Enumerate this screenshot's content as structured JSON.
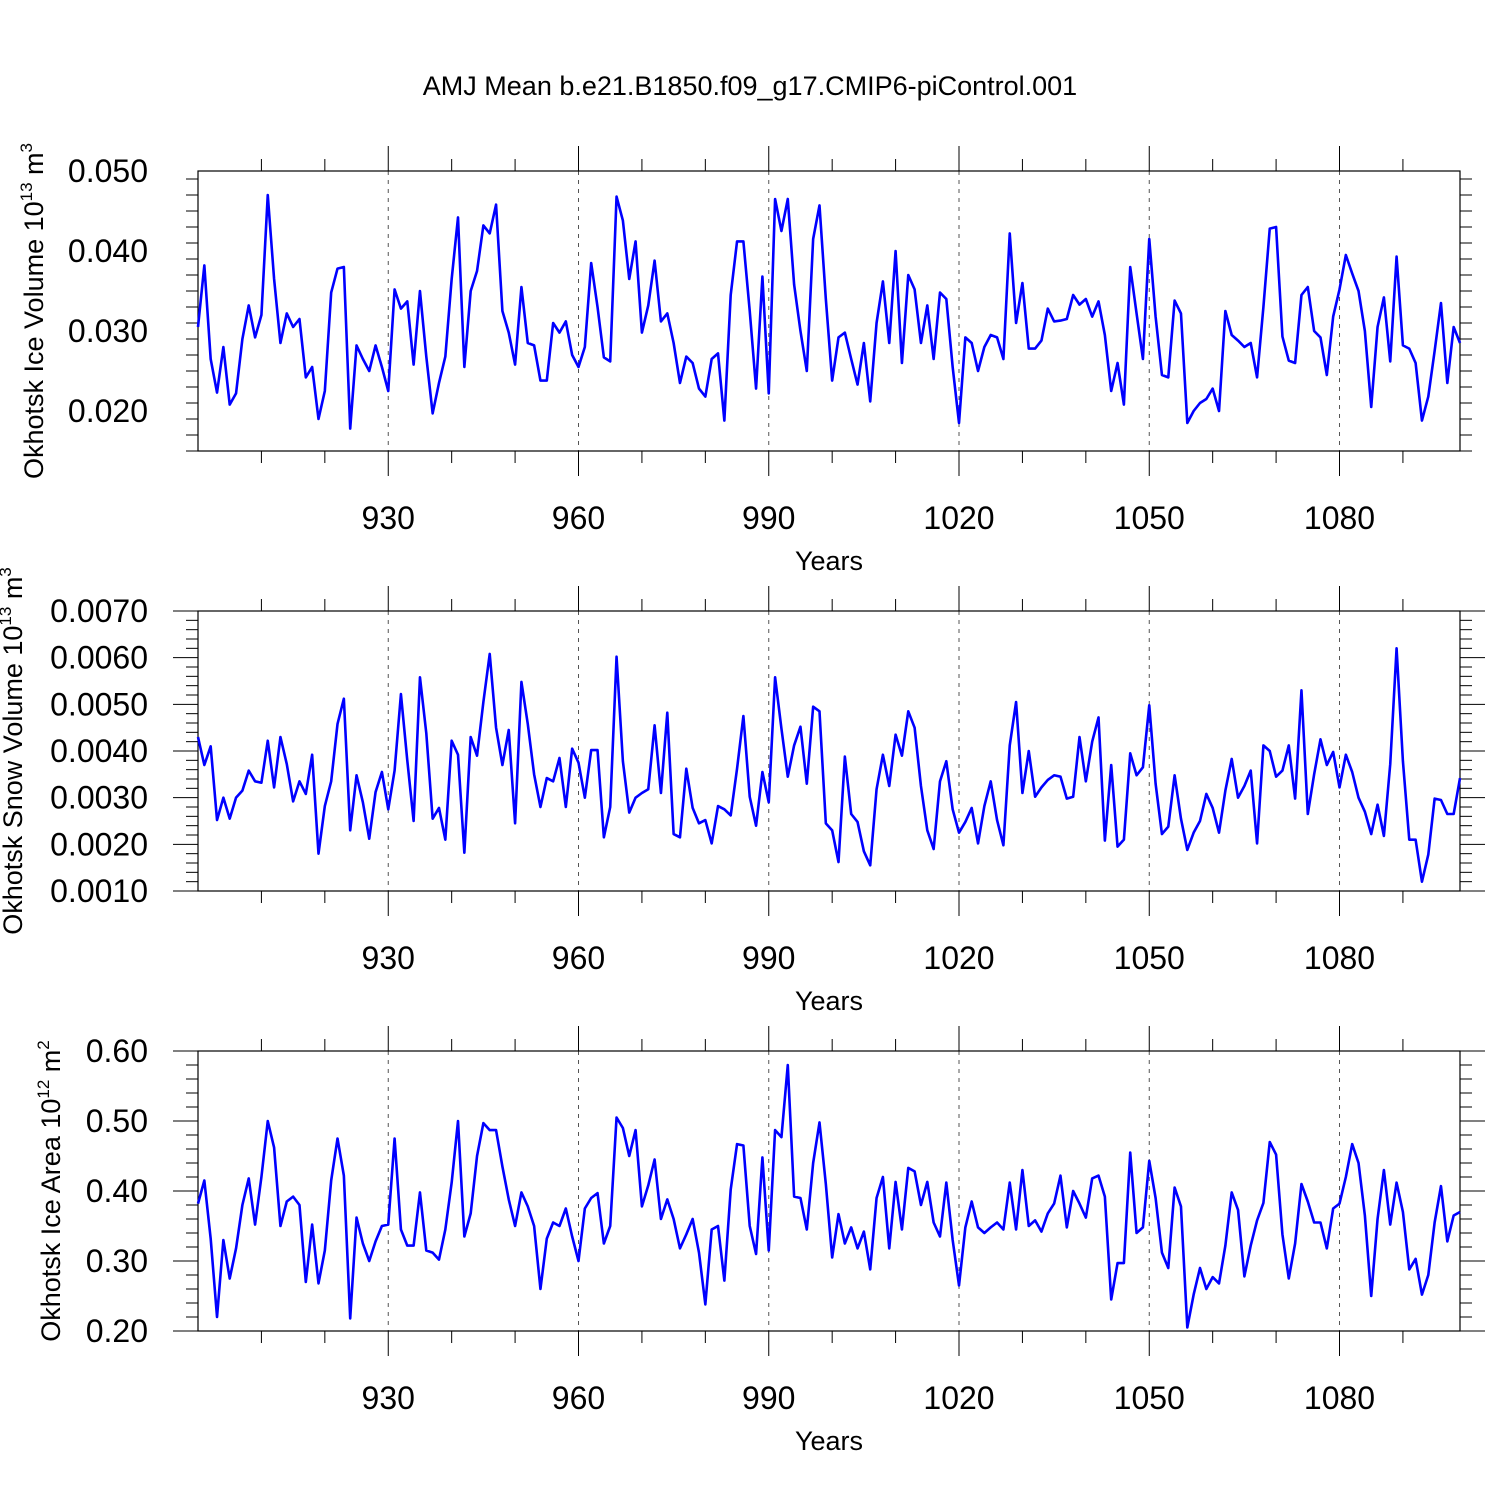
{
  "title": "AMJ Mean b.e21.B1850.f09_g17.CMIP6-piControl.001",
  "colors": {
    "line": "#0000ff",
    "axis": "#000000",
    "grid": "#555555"
  },
  "chart_data": [
    {
      "type": "line",
      "name": "ice-volume",
      "ylabel": {
        "main": "Okhotsk Ice Volume 10",
        "exp": "13",
        "unit": " m",
        "unit_exp": "3"
      },
      "xlabel": "Years",
      "xlim": [
        900,
        1099
      ],
      "ylim": [
        0.015,
        0.05
      ],
      "xticks": [
        930,
        960,
        990,
        1020,
        1050,
        1080
      ],
      "xtick_labels": [
        "930",
        "960",
        "990",
        "1020",
        "1050",
        "1080"
      ],
      "yticks": [
        0.02,
        0.03,
        0.04,
        0.05
      ],
      "ytick_labels": [
        "0.020",
        "0.030",
        "0.040",
        "0.050"
      ],
      "yminor_step": 0.002,
      "x_start": 900,
      "values": [
        0.0305,
        0.0382,
        0.0265,
        0.0223,
        0.028,
        0.0208,
        0.0222,
        0.029,
        0.0332,
        0.0292,
        0.032,
        0.047,
        0.0365,
        0.0285,
        0.0322,
        0.0305,
        0.0315,
        0.0242,
        0.0255,
        0.019,
        0.0225,
        0.0348,
        0.0378,
        0.038,
        0.0178,
        0.0282,
        0.0265,
        0.025,
        0.0282,
        0.0255,
        0.0225,
        0.0352,
        0.0328,
        0.0337,
        0.0258,
        0.035,
        0.0268,
        0.0197,
        0.0235,
        0.0268,
        0.0365,
        0.0442,
        0.0255,
        0.035,
        0.0375,
        0.0432,
        0.0422,
        0.0458,
        0.0325,
        0.0298,
        0.0258,
        0.0355,
        0.0285,
        0.0282,
        0.0238,
        0.0238,
        0.031,
        0.0298,
        0.0312,
        0.027,
        0.0255,
        0.028,
        0.0385,
        0.033,
        0.0267,
        0.0262,
        0.0468,
        0.0438,
        0.0365,
        0.0412,
        0.0298,
        0.0332,
        0.0388,
        0.0312,
        0.0322,
        0.0285,
        0.0235,
        0.0268,
        0.026,
        0.0228,
        0.0218,
        0.0265,
        0.0272,
        0.0188,
        0.0345,
        0.0412,
        0.0412,
        0.0325,
        0.0228,
        0.0368,
        0.0222,
        0.0465,
        0.0425,
        0.0465,
        0.0358,
        0.03,
        0.025,
        0.0415,
        0.0457,
        0.034,
        0.0238,
        0.0292,
        0.0298,
        0.0265,
        0.0233,
        0.0285,
        0.0212,
        0.031,
        0.0362,
        0.0285,
        0.04,
        0.026,
        0.037,
        0.0352,
        0.0285,
        0.0332,
        0.0265,
        0.0348,
        0.034,
        0.0255,
        0.0185,
        0.0292,
        0.0285,
        0.025,
        0.028,
        0.0295,
        0.0292,
        0.0265,
        0.0422,
        0.031,
        0.036,
        0.0278,
        0.0278,
        0.0288,
        0.0328,
        0.0312,
        0.0313,
        0.0315,
        0.0345,
        0.0333,
        0.034,
        0.0318,
        0.0337,
        0.0295,
        0.0225,
        0.026,
        0.0208,
        0.038,
        0.0322,
        0.0265,
        0.0415,
        0.0318,
        0.0245,
        0.0242,
        0.0338,
        0.0322,
        0.0185,
        0.02,
        0.021,
        0.0215,
        0.0228,
        0.02,
        0.0325,
        0.0295,
        0.0288,
        0.028,
        0.0285,
        0.0242,
        0.033,
        0.0428,
        0.043,
        0.0293,
        0.0263,
        0.026,
        0.0345,
        0.0355,
        0.03,
        0.0292,
        0.0245,
        0.0318,
        0.0352,
        0.0395,
        0.0372,
        0.035,
        0.03,
        0.0205,
        0.0305,
        0.0342,
        0.0262,
        0.0393,
        0.0282,
        0.0278,
        0.026,
        0.0188,
        0.0218,
        0.0275,
        0.0335,
        0.0235,
        0.0305,
        0.0285
      ]
    },
    {
      "type": "line",
      "name": "snow-volume",
      "ylabel": {
        "main": "Okhotsk Snow Volume 10",
        "exp": "13",
        "unit": " m",
        "unit_exp": "3"
      },
      "xlabel": "Years",
      "xlim": [
        900,
        1099
      ],
      "ylim": [
        0.001,
        0.007
      ],
      "xticks": [
        930,
        960,
        990,
        1020,
        1050,
        1080
      ],
      "xtick_labels": [
        "930",
        "960",
        "990",
        "1020",
        "1050",
        "1080"
      ],
      "yticks": [
        0.001,
        0.002,
        0.003,
        0.004,
        0.005,
        0.006,
        0.007
      ],
      "ytick_labels": [
        "0.0010",
        "0.0020",
        "0.0030",
        "0.0040",
        "0.0050",
        "0.0060",
        "0.0070"
      ],
      "yminor_step": 0.0002,
      "x_start": 900,
      "values": [
        0.0043,
        0.0037,
        0.0041,
        0.00252,
        0.003,
        0.00255,
        0.003,
        0.00315,
        0.00358,
        0.00335,
        0.00332,
        0.00422,
        0.00322,
        0.0043,
        0.00372,
        0.00292,
        0.00335,
        0.00308,
        0.00392,
        0.0018,
        0.00282,
        0.00335,
        0.00458,
        0.00512,
        0.0023,
        0.00348,
        0.0029,
        0.00212,
        0.00312,
        0.00355,
        0.00275,
        0.00358,
        0.00522,
        0.0038,
        0.0025,
        0.00558,
        0.00438,
        0.00255,
        0.00278,
        0.0021,
        0.00422,
        0.00392,
        0.00182,
        0.0043,
        0.0039,
        0.00505,
        0.00608,
        0.0045,
        0.0037,
        0.00445,
        0.00245,
        0.00548,
        0.00458,
        0.0035,
        0.0028,
        0.00342,
        0.00335,
        0.00385,
        0.0028,
        0.00405,
        0.00375,
        0.003,
        0.00402,
        0.00402,
        0.00215,
        0.0028,
        0.00602,
        0.00378,
        0.00268,
        0.003,
        0.0031,
        0.00318,
        0.00455,
        0.0031,
        0.00482,
        0.00222,
        0.00215,
        0.00362,
        0.00278,
        0.00245,
        0.00252,
        0.00202,
        0.00282,
        0.00275,
        0.00262,
        0.00362,
        0.00475,
        0.00302,
        0.0024,
        0.00355,
        0.0029,
        0.00558,
        0.00448,
        0.00345,
        0.00412,
        0.00452,
        0.0033,
        0.00495,
        0.00485,
        0.00245,
        0.0023,
        0.00162,
        0.00388,
        0.00265,
        0.00248,
        0.00185,
        0.00155,
        0.00318,
        0.00392,
        0.00325,
        0.00435,
        0.0039,
        0.00485,
        0.0045,
        0.00325,
        0.0023,
        0.0019,
        0.00335,
        0.00378,
        0.00275,
        0.00225,
        0.00248,
        0.00278,
        0.00202,
        0.00282,
        0.00335,
        0.00252,
        0.00198,
        0.00412,
        0.00505,
        0.0031,
        0.004,
        0.00302,
        0.00322,
        0.00338,
        0.00348,
        0.00345,
        0.00298,
        0.00302,
        0.0043,
        0.00335,
        0.0042,
        0.00472,
        0.00208,
        0.0037,
        0.00195,
        0.0021,
        0.00395,
        0.00348,
        0.00365,
        0.00498,
        0.0033,
        0.00222,
        0.00238,
        0.00348,
        0.00255,
        0.00188,
        0.00225,
        0.0025,
        0.00308,
        0.00278,
        0.00225,
        0.00315,
        0.00383,
        0.003,
        0.00325,
        0.00358,
        0.00202,
        0.00412,
        0.004,
        0.00345,
        0.00358,
        0.00412,
        0.00298,
        0.0053,
        0.00265,
        0.0035,
        0.00425,
        0.0037,
        0.00398,
        0.00322,
        0.00392,
        0.00355,
        0.003,
        0.0027,
        0.00222,
        0.00285,
        0.00218,
        0.00372,
        0.0062,
        0.00378,
        0.0021,
        0.0021,
        0.0012,
        0.00178,
        0.00298,
        0.00295,
        0.00265,
        0.00265,
        0.00342
      ]
    },
    {
      "type": "line",
      "name": "ice-area",
      "ylabel": {
        "main": "Okhotsk Ice Area 10",
        "exp": "12",
        "unit": " m",
        "unit_exp": "2"
      },
      "xlabel": "Years",
      "xlim": [
        900,
        1099
      ],
      "ylim": [
        0.2,
        0.6
      ],
      "xticks": [
        930,
        960,
        990,
        1020,
        1050,
        1080
      ],
      "xtick_labels": [
        "930",
        "960",
        "990",
        "1020",
        "1050",
        "1080"
      ],
      "yticks": [
        0.2,
        0.3,
        0.4,
        0.5,
        0.6
      ],
      "ytick_labels": [
        "0.20",
        "0.30",
        "0.40",
        "0.50",
        "0.60"
      ],
      "yminor_step": 0.02,
      "x_start": 900,
      "values": [
        0.382,
        0.415,
        0.332,
        0.22,
        0.33,
        0.275,
        0.318,
        0.38,
        0.418,
        0.352,
        0.42,
        0.5,
        0.462,
        0.35,
        0.385,
        0.392,
        0.38,
        0.27,
        0.352,
        0.268,
        0.315,
        0.415,
        0.475,
        0.422,
        0.218,
        0.362,
        0.325,
        0.3,
        0.328,
        0.35,
        0.352,
        0.475,
        0.345,
        0.322,
        0.322,
        0.398,
        0.315,
        0.312,
        0.302,
        0.345,
        0.412,
        0.5,
        0.335,
        0.368,
        0.45,
        0.497,
        0.487,
        0.487,
        0.435,
        0.388,
        0.35,
        0.398,
        0.378,
        0.35,
        0.26,
        0.332,
        0.355,
        0.35,
        0.375,
        0.335,
        0.3,
        0.375,
        0.39,
        0.397,
        0.325,
        0.35,
        0.505,
        0.49,
        0.45,
        0.487,
        0.378,
        0.408,
        0.445,
        0.36,
        0.388,
        0.36,
        0.318,
        0.338,
        0.36,
        0.312,
        0.238,
        0.345,
        0.35,
        0.272,
        0.402,
        0.467,
        0.465,
        0.35,
        0.31,
        0.448,
        0.315,
        0.487,
        0.477,
        0.58,
        0.392,
        0.39,
        0.345,
        0.44,
        0.498,
        0.41,
        0.305,
        0.367,
        0.325,
        0.348,
        0.318,
        0.342,
        0.288,
        0.39,
        0.42,
        0.318,
        0.413,
        0.345,
        0.433,
        0.428,
        0.38,
        0.413,
        0.355,
        0.335,
        0.412,
        0.33,
        0.265,
        0.348,
        0.385,
        0.348,
        0.34,
        0.348,
        0.355,
        0.345,
        0.412,
        0.345,
        0.43,
        0.35,
        0.358,
        0.342,
        0.368,
        0.382,
        0.422,
        0.348,
        0.4,
        0.382,
        0.362,
        0.418,
        0.422,
        0.392,
        0.245,
        0.297,
        0.297,
        0.455,
        0.34,
        0.348,
        0.443,
        0.39,
        0.312,
        0.29,
        0.405,
        0.378,
        0.205,
        0.252,
        0.29,
        0.26,
        0.277,
        0.268,
        0.322,
        0.398,
        0.373,
        0.278,
        0.322,
        0.358,
        0.383,
        0.47,
        0.452,
        0.338,
        0.275,
        0.325,
        0.41,
        0.385,
        0.355,
        0.355,
        0.318,
        0.375,
        0.382,
        0.42,
        0.467,
        0.44,
        0.365,
        0.25,
        0.36,
        0.43,
        0.352,
        0.412,
        0.37,
        0.288,
        0.303,
        0.252,
        0.28,
        0.355,
        0.407,
        0.328,
        0.365,
        0.37
      ]
    }
  ]
}
